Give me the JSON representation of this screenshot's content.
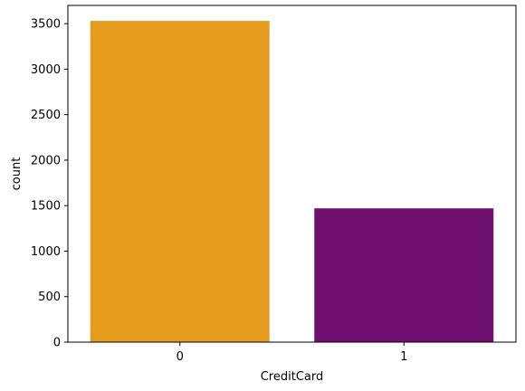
{
  "chart_data": {
    "type": "bar",
    "title": "",
    "xlabel": "CreditCard",
    "ylabel": "count",
    "categories": [
      "0",
      "1"
    ],
    "values": [
      3530,
      1470
    ],
    "ylim": [
      0,
      3700
    ],
    "yticks": [
      0,
      500,
      1000,
      1500,
      2000,
      2500,
      3000,
      3500
    ],
    "grid": false,
    "colors": [
      "#e59b1e",
      "#6f0f70"
    ]
  }
}
